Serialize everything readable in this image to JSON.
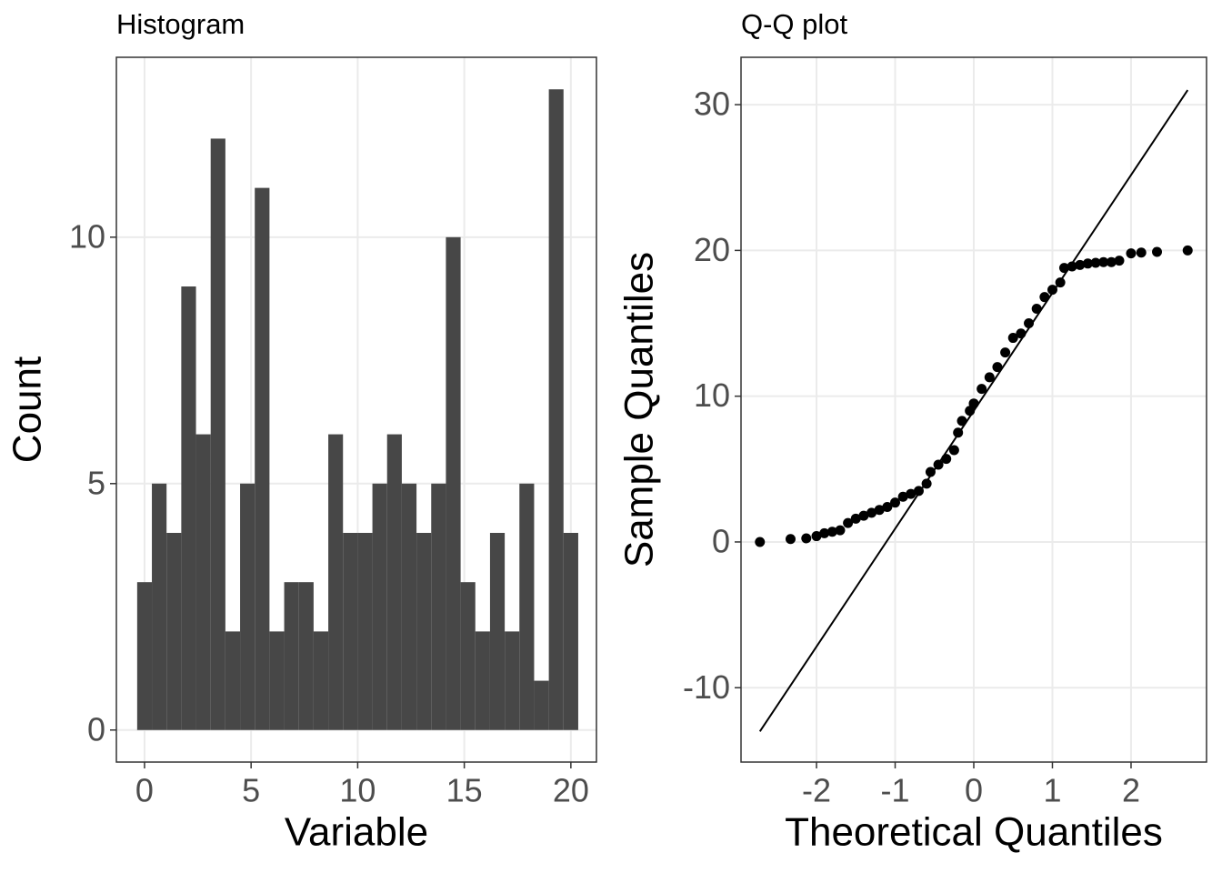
{
  "chart_data": [
    {
      "type": "histogram",
      "title": "Histogram",
      "x_label": "Variable",
      "y_label": "Count",
      "bins": [
        -0.345,
        0.345,
        1.034,
        1.724,
        2.414,
        3.103,
        3.793,
        4.483,
        5.172,
        5.862,
        6.552,
        7.241,
        7.931,
        8.621,
        9.31,
        10.0,
        10.69,
        11.379,
        12.069,
        12.759,
        13.448,
        14.138,
        14.828,
        15.517,
        16.207,
        16.897,
        17.586,
        18.276,
        18.966,
        19.655,
        20.345
      ],
      "values": [
        3,
        5,
        4,
        9,
        6,
        12,
        2,
        5,
        11,
        2,
        3,
        3,
        2,
        6,
        4,
        4,
        5,
        6,
        5,
        4,
        5,
        10,
        3,
        2,
        4,
        2,
        5,
        1,
        13,
        4
      ],
      "color": "#474747",
      "xlim": [
        -1.32,
        21.2
      ],
      "xticks": [
        0,
        5,
        10,
        15,
        20
      ],
      "ylim": [
        -0.65,
        13.65
      ],
      "yticks": [
        0,
        5,
        10
      ],
      "grid": true
    },
    {
      "type": "scatter",
      "title": "Q-Q plot",
      "x_label": "Theoretical Quantiles",
      "y_label": "Sample Quantiles",
      "x": [
        -2.72,
        -2.33,
        -2.13,
        -2.0,
        -1.9,
        -1.8,
        -1.7,
        -1.6,
        -1.5,
        -1.4,
        -1.3,
        -1.2,
        -1.1,
        -1.0,
        -0.9,
        -0.8,
        -0.7,
        -0.6,
        -0.55,
        -0.45,
        -0.35,
        -0.25,
        -0.2,
        -0.15,
        -0.05,
        0.0,
        0.1,
        0.2,
        0.3,
        0.4,
        0.5,
        0.6,
        0.7,
        0.8,
        0.9,
        1.0,
        1.1,
        1.15,
        1.25,
        1.35,
        1.45,
        1.55,
        1.65,
        1.75,
        1.85,
        2.0,
        2.13,
        2.33,
        2.72
      ],
      "y": [
        0.0,
        0.2,
        0.25,
        0.4,
        0.6,
        0.7,
        0.8,
        1.3,
        1.6,
        1.8,
        2.0,
        2.2,
        2.4,
        2.7,
        3.1,
        3.3,
        3.5,
        4.0,
        4.8,
        5.3,
        5.7,
        6.3,
        7.5,
        8.3,
        9.0,
        9.5,
        10.5,
        11.3,
        12.0,
        13.0,
        14.0,
        14.3,
        15.0,
        16.0,
        16.8,
        17.3,
        17.8,
        18.8,
        18.9,
        19.0,
        19.1,
        19.15,
        19.2,
        19.2,
        19.3,
        19.8,
        19.85,
        19.9,
        20.0
      ],
      "color": "#000000",
      "reference_line": {
        "x": [
          -2.72,
          2.72
        ],
        "y": [
          -13,
          31
        ],
        "color": "#000000"
      },
      "xlim": [
        -2.96,
        2.96
      ],
      "xticks": [
        -2,
        -1,
        0,
        1,
        2
      ],
      "ylim": [
        -15.1,
        33.25
      ],
      "yticks": [
        -10,
        0,
        10,
        20,
        30
      ],
      "grid": true
    }
  ]
}
